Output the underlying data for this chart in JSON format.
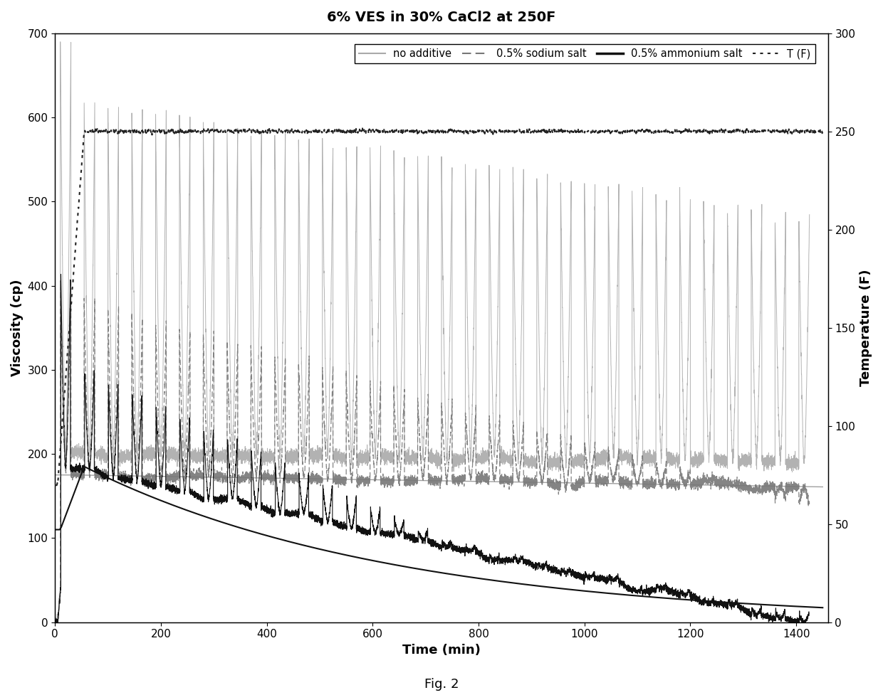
{
  "title": "6% VES in 30% CaCl2 at 250F",
  "xlabel": "Time (min)",
  "ylabel_left": "Viscosity (cp)",
  "ylabel_right": "Temperature (F)",
  "xlim": [
    0,
    1460
  ],
  "ylim_left": [
    0,
    700
  ],
  "ylim_right": [
    0,
    300
  ],
  "xticks": [
    0,
    200,
    400,
    600,
    800,
    1000,
    1200,
    1400
  ],
  "yticks_left": [
    0,
    100,
    200,
    300,
    400,
    500,
    600,
    700
  ],
  "yticks_right": [
    0,
    50,
    100,
    150,
    200,
    250,
    300
  ],
  "color_no_additive": "#aaaaaa",
  "color_sodium": "#777777",
  "color_ammonium": "#111111",
  "color_temperature": "#222222",
  "fig_caption": "Fig. 2",
  "legend_labels": [
    "no additive",
    "0.5% sodium salt",
    "0.5% ammonium salt",
    "T (F)"
  ],
  "spike_interval": 45,
  "spike_first": 20,
  "n_points_per_sweep": 80,
  "sweep_duration": 18
}
